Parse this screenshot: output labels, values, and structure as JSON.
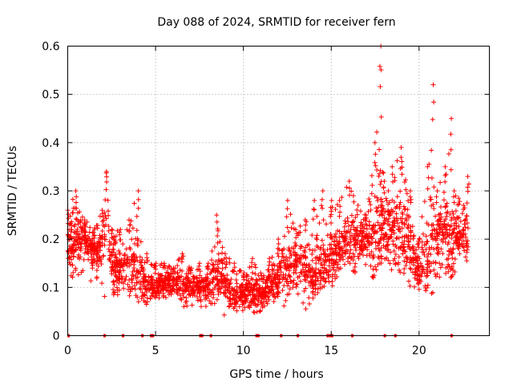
{
  "chart_data": {
    "type": "scatter",
    "title": "Day 088 of 2024, SRMTID for receiver fern",
    "xlabel": "GPS time / hours",
    "ylabel": "SRMTID / TECUs",
    "xlim": [
      0,
      24
    ],
    "ylim": [
      0,
      0.6
    ],
    "xticks": [
      0,
      5,
      10,
      15,
      20
    ],
    "yticks": [
      0,
      0.1,
      0.2,
      0.3,
      0.4,
      0.5,
      0.6
    ],
    "ytick_labels": [
      "0",
      "0.1",
      "0.2",
      "0.3",
      "0.4",
      "0.5",
      "0.6"
    ],
    "grid": true,
    "legend": "none",
    "marker": "plus",
    "color": "#ff0000",
    "series": [
      {
        "name": "SRMTID",
        "envelope_hours": [
          0,
          0.5,
          1,
          1.5,
          2,
          2.2,
          2.5,
          3,
          3.5,
          4,
          4.5,
          5,
          5.5,
          6,
          6.5,
          7,
          7.5,
          8,
          8.5,
          9,
          9.5,
          10,
          10.5,
          11,
          11.5,
          12,
          12.5,
          13,
          13.5,
          14,
          14.5,
          15,
          15.5,
          16,
          16.5,
          17,
          17.5,
          17.8,
          18,
          18.5,
          19,
          19.5,
          20,
          20.5,
          20.8,
          21,
          21.5,
          21.8,
          22,
          22.5,
          22.8
        ],
        "median_tecu": [
          0.19,
          0.2,
          0.2,
          0.17,
          0.2,
          0.25,
          0.15,
          0.13,
          0.15,
          0.15,
          0.1,
          0.1,
          0.11,
          0.11,
          0.1,
          0.1,
          0.1,
          0.1,
          0.13,
          0.1,
          0.08,
          0.09,
          0.09,
          0.08,
          0.1,
          0.12,
          0.14,
          0.15,
          0.15,
          0.12,
          0.15,
          0.16,
          0.18,
          0.2,
          0.19,
          0.2,
          0.2,
          0.25,
          0.22,
          0.22,
          0.22,
          0.2,
          0.13,
          0.16,
          0.22,
          0.2,
          0.22,
          0.18,
          0.2,
          0.2,
          0.2
        ],
        "max_tecu": [
          0.26,
          0.3,
          0.24,
          0.22,
          0.26,
          0.34,
          0.22,
          0.22,
          0.24,
          0.3,
          0.17,
          0.15,
          0.15,
          0.14,
          0.17,
          0.14,
          0.15,
          0.15,
          0.25,
          0.17,
          0.15,
          0.13,
          0.16,
          0.13,
          0.16,
          0.2,
          0.28,
          0.22,
          0.24,
          0.28,
          0.3,
          0.28,
          0.28,
          0.32,
          0.27,
          0.25,
          0.4,
          0.6,
          0.32,
          0.35,
          0.39,
          0.3,
          0.2,
          0.35,
          0.52,
          0.3,
          0.35,
          0.45,
          0.3,
          0.27,
          0.33
        ],
        "min_tecu": [
          0.1,
          0.12,
          0.13,
          0.1,
          0.05,
          0.1,
          0.08,
          0.08,
          0.08,
          0.07,
          0.06,
          0.06,
          0.07,
          0.07,
          0.06,
          0.06,
          0.05,
          0.06,
          0.05,
          0.04,
          0.05,
          0.05,
          0.05,
          0.04,
          0.06,
          0.03,
          0.07,
          0.08,
          0.05,
          0.08,
          0.1,
          0.1,
          0.12,
          0.13,
          0.12,
          0.12,
          0.12,
          0.15,
          0.15,
          0.13,
          0.12,
          0.1,
          0.09,
          0.08,
          0.09,
          0.12,
          0.1,
          0.12,
          0.13,
          0.15,
          0.15
        ]
      }
    ],
    "zero_markers_hours": [
      0.05,
      2.1,
      3.15,
      4.25,
      4.75,
      4.85,
      7.55,
      7.65,
      8.15,
      10.75,
      10.85,
      12.15,
      13.1,
      14.8,
      14.95,
      15.05,
      16.2,
      18.05,
      18.65,
      21.85
    ]
  }
}
